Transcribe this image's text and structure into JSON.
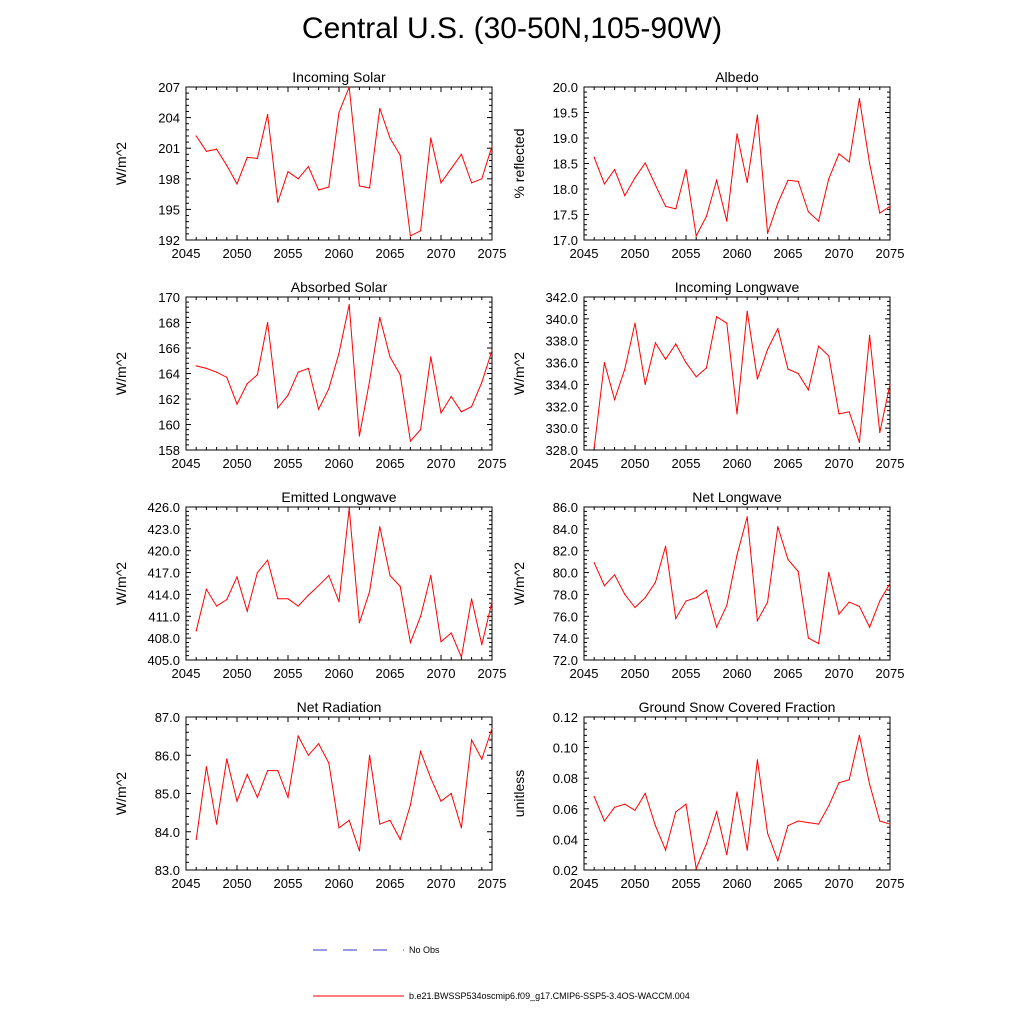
{
  "title": "Central U.S. (30-50N,105-90W)",
  "colors": {
    "model_line": "#ff0000",
    "obs_line": "#3333cc",
    "axis": "#000000"
  },
  "legend": {
    "obs_label": "No Obs",
    "model_label": "b.e21.BWSSP534oscmip6.f09_g17.CMIP6-SSP5-3.4OS-WACCM.004"
  },
  "chart_data": [
    {
      "type": "line",
      "title": "Incoming Solar",
      "ylabel": "W/m^2",
      "xlabel": "",
      "xlim": [
        2045,
        2075
      ],
      "ylim": [
        192,
        207
      ],
      "xticks": [
        "2045",
        "2050",
        "2055",
        "2060",
        "2065",
        "2070",
        "2075"
      ],
      "yticks": [
        "192",
        "195",
        "198",
        "201",
        "204",
        "207"
      ],
      "x": [
        2046,
        2047,
        2048,
        2049,
        2050,
        2051,
        2052,
        2053,
        2054,
        2055,
        2056,
        2057,
        2058,
        2059,
        2060,
        2061,
        2062,
        2063,
        2064,
        2065,
        2066,
        2067,
        2068,
        2069,
        2070,
        2071,
        2072,
        2073,
        2074,
        2075
      ],
      "series": [
        {
          "name": "model",
          "values": [
            202.2,
            200.7,
            200.9,
            199.3,
            197.5,
            200.1,
            200.0,
            204.3,
            195.7,
            198.7,
            198.0,
            199.2,
            196.9,
            197.2,
            204.5,
            207.0,
            197.3,
            197.1,
            204.9,
            202.0,
            200.3,
            192.4,
            192.9,
            202.0,
            197.6,
            199.0,
            200.4,
            197.6,
            198.0,
            201.2
          ]
        }
      ]
    },
    {
      "type": "line",
      "title": "Albedo",
      "ylabel": "% reflected",
      "xlabel": "",
      "xlim": [
        2045,
        2075
      ],
      "ylim": [
        17.0,
        20.0
      ],
      "xticks": [
        "2045",
        "2050",
        "2055",
        "2060",
        "2065",
        "2070",
        "2075"
      ],
      "yticks": [
        "17.0",
        "17.5",
        "18.0",
        "18.5",
        "19.0",
        "19.5",
        "20.0"
      ],
      "x": [
        2046,
        2047,
        2048,
        2049,
        2050,
        2051,
        2052,
        2053,
        2054,
        2055,
        2056,
        2057,
        2058,
        2059,
        2060,
        2061,
        2062,
        2063,
        2064,
        2065,
        2066,
        2067,
        2068,
        2069,
        2070,
        2071,
        2072,
        2073,
        2074,
        2075
      ],
      "series": [
        {
          "name": "model",
          "values": [
            18.62,
            18.1,
            18.38,
            17.87,
            18.22,
            18.51,
            18.08,
            17.66,
            17.61,
            18.38,
            17.08,
            17.46,
            18.17,
            17.37,
            19.08,
            18.13,
            19.45,
            17.13,
            17.72,
            18.17,
            18.15,
            17.55,
            17.37,
            18.2,
            18.69,
            18.53,
            19.77,
            18.5,
            17.53,
            17.66
          ]
        }
      ]
    },
    {
      "type": "line",
      "title": "Absorbed Solar",
      "ylabel": "W/m^2",
      "xlabel": "",
      "xlim": [
        2045,
        2075
      ],
      "ylim": [
        158,
        170
      ],
      "xticks": [
        "2045",
        "2050",
        "2055",
        "2060",
        "2065",
        "2070",
        "2075"
      ],
      "yticks": [
        "158",
        "160",
        "162",
        "164",
        "166",
        "168",
        "170"
      ],
      "x": [
        2046,
        2047,
        2048,
        2049,
        2050,
        2051,
        2052,
        2053,
        2054,
        2055,
        2056,
        2057,
        2058,
        2059,
        2060,
        2061,
        2062,
        2063,
        2064,
        2065,
        2066,
        2067,
        2068,
        2069,
        2070,
        2071,
        2072,
        2073,
        2074,
        2075
      ],
      "series": [
        {
          "name": "model",
          "values": [
            164.6,
            164.4,
            164.1,
            163.7,
            161.6,
            163.2,
            163.9,
            168.0,
            161.3,
            162.3,
            164.1,
            164.4,
            161.2,
            162.8,
            165.6,
            169.4,
            159.1,
            163.4,
            168.4,
            165.3,
            163.9,
            158.7,
            159.6,
            165.3,
            160.9,
            162.2,
            161.0,
            161.4,
            163.3,
            165.8
          ]
        }
      ]
    },
    {
      "type": "line",
      "title": "Incoming Longwave",
      "ylabel": "W/m^2",
      "xlabel": "",
      "xlim": [
        2045,
        2075
      ],
      "ylim": [
        328.0,
        342.0
      ],
      "xticks": [
        "2045",
        "2050",
        "2055",
        "2060",
        "2065",
        "2070",
        "2075"
      ],
      "yticks": [
        "328.0",
        "330.0",
        "332.0",
        "334.0",
        "336.0",
        "338.0",
        "340.0",
        "342.0"
      ],
      "x": [
        2046,
        2047,
        2048,
        2049,
        2050,
        2051,
        2052,
        2053,
        2054,
        2055,
        2056,
        2057,
        2058,
        2059,
        2060,
        2061,
        2062,
        2063,
        2064,
        2065,
        2066,
        2067,
        2068,
        2069,
        2070,
        2071,
        2072,
        2073,
        2074,
        2075
      ],
      "series": [
        {
          "name": "model",
          "values": [
            328.2,
            336.0,
            332.6,
            335.4,
            339.6,
            334.0,
            337.8,
            336.3,
            337.7,
            336.0,
            334.7,
            335.5,
            340.2,
            339.6,
            331.3,
            340.7,
            334.5,
            337.2,
            339.1,
            335.4,
            335.0,
            333.5,
            337.5,
            336.6,
            331.3,
            331.5,
            328.7,
            338.5,
            329.6,
            334.0
          ]
        }
      ]
    },
    {
      "type": "line",
      "title": "Emitted Longwave",
      "ylabel": "W/m^2",
      "xlabel": "",
      "xlim": [
        2045,
        2075
      ],
      "ylim": [
        405.0,
        426.0
      ],
      "xticks": [
        "2045",
        "2050",
        "2055",
        "2060",
        "2065",
        "2070",
        "2075"
      ],
      "yticks": [
        "405.0",
        "408.0",
        "411.0",
        "414.0",
        "417.0",
        "420.0",
        "423.0",
        "426.0"
      ],
      "x": [
        2046,
        2047,
        2048,
        2049,
        2050,
        2051,
        2052,
        2053,
        2054,
        2055,
        2056,
        2057,
        2058,
        2059,
        2060,
        2061,
        2062,
        2063,
        2064,
        2065,
        2066,
        2067,
        2068,
        2069,
        2070,
        2071,
        2072,
        2073,
        2074,
        2075
      ],
      "series": [
        {
          "name": "model",
          "values": [
            409.0,
            414.7,
            412.4,
            413.3,
            416.4,
            411.7,
            417.0,
            418.7,
            413.4,
            413.4,
            412.4,
            413.9,
            415.2,
            416.6,
            413.0,
            425.8,
            410.1,
            414.4,
            423.3,
            416.6,
            415.1,
            407.4,
            411.0,
            416.6,
            407.5,
            408.7,
            405.4,
            413.4,
            407.1,
            413.0
          ]
        }
      ]
    },
    {
      "type": "line",
      "title": "Net Longwave",
      "ylabel": "W/m^2",
      "xlabel": "",
      "xlim": [
        2045,
        2075
      ],
      "ylim": [
        72.0,
        86.0
      ],
      "xticks": [
        "2045",
        "2050",
        "2055",
        "2060",
        "2065",
        "2070",
        "2075"
      ],
      "yticks": [
        "72.0",
        "74.0",
        "76.0",
        "78.0",
        "80.0",
        "82.0",
        "84.0",
        "86.0"
      ],
      "x": [
        2046,
        2047,
        2048,
        2049,
        2050,
        2051,
        2052,
        2053,
        2054,
        2055,
        2056,
        2057,
        2058,
        2059,
        2060,
        2061,
        2062,
        2063,
        2064,
        2065,
        2066,
        2067,
        2068,
        2069,
        2070,
        2071,
        2072,
        2073,
        2074,
        2075
      ],
      "series": [
        {
          "name": "model",
          "values": [
            80.9,
            78.8,
            79.8,
            78.0,
            76.8,
            77.7,
            79.1,
            82.4,
            75.8,
            77.4,
            77.7,
            78.4,
            75.0,
            77.0,
            81.6,
            85.1,
            75.6,
            77.3,
            84.2,
            81.2,
            80.1,
            74.0,
            73.5,
            80.0,
            76.2,
            77.3,
            76.9,
            75.0,
            77.4,
            79.0
          ]
        }
      ]
    },
    {
      "type": "line",
      "title": "Net Radiation",
      "ylabel": "W/m^2",
      "xlabel": "",
      "xlim": [
        2045,
        2075
      ],
      "ylim": [
        83.0,
        87.0
      ],
      "xticks": [
        "2045",
        "2050",
        "2055",
        "2060",
        "2065",
        "2070",
        "2075"
      ],
      "yticks": [
        "83.0",
        "84.0",
        "85.0",
        "86.0",
        "87.0"
      ],
      "x": [
        2046,
        2047,
        2048,
        2049,
        2050,
        2051,
        2052,
        2053,
        2054,
        2055,
        2056,
        2057,
        2058,
        2059,
        2060,
        2061,
        2062,
        2063,
        2064,
        2065,
        2066,
        2067,
        2068,
        2069,
        2070,
        2071,
        2072,
        2073,
        2074,
        2075
      ],
      "series": [
        {
          "name": "model",
          "values": [
            83.8,
            85.7,
            84.2,
            85.9,
            84.8,
            85.5,
            84.9,
            85.6,
            85.6,
            84.9,
            86.5,
            86.0,
            86.3,
            85.8,
            84.1,
            84.3,
            83.5,
            86.0,
            84.2,
            84.3,
            83.8,
            84.7,
            86.1,
            85.4,
            84.8,
            85.0,
            84.1,
            86.4,
            85.9,
            86.7
          ]
        }
      ]
    },
    {
      "type": "line",
      "title": "Ground Snow Covered Fraction",
      "ylabel": "unitless",
      "xlabel": "",
      "xlim": [
        2045,
        2075
      ],
      "ylim": [
        0.02,
        0.12
      ],
      "xticks": [
        "2045",
        "2050",
        "2055",
        "2060",
        "2065",
        "2070",
        "2075"
      ],
      "yticks": [
        "0.02",
        "0.04",
        "0.06",
        "0.08",
        "0.10",
        "0.12"
      ],
      "x": [
        2046,
        2047,
        2048,
        2049,
        2050,
        2051,
        2052,
        2053,
        2054,
        2055,
        2056,
        2057,
        2058,
        2059,
        2060,
        2061,
        2062,
        2063,
        2064,
        2065,
        2066,
        2067,
        2068,
        2069,
        2070,
        2071,
        2072,
        2073,
        2074,
        2075
      ],
      "series": [
        {
          "name": "model",
          "values": [
            0.068,
            0.052,
            0.061,
            0.063,
            0.059,
            0.07,
            0.049,
            0.033,
            0.058,
            0.063,
            0.021,
            0.037,
            0.058,
            0.03,
            0.071,
            0.033,
            0.092,
            0.044,
            0.026,
            0.049,
            0.052,
            0.051,
            0.05,
            0.062,
            0.077,
            0.079,
            0.108,
            0.076,
            0.052,
            0.05
          ]
        }
      ]
    }
  ]
}
